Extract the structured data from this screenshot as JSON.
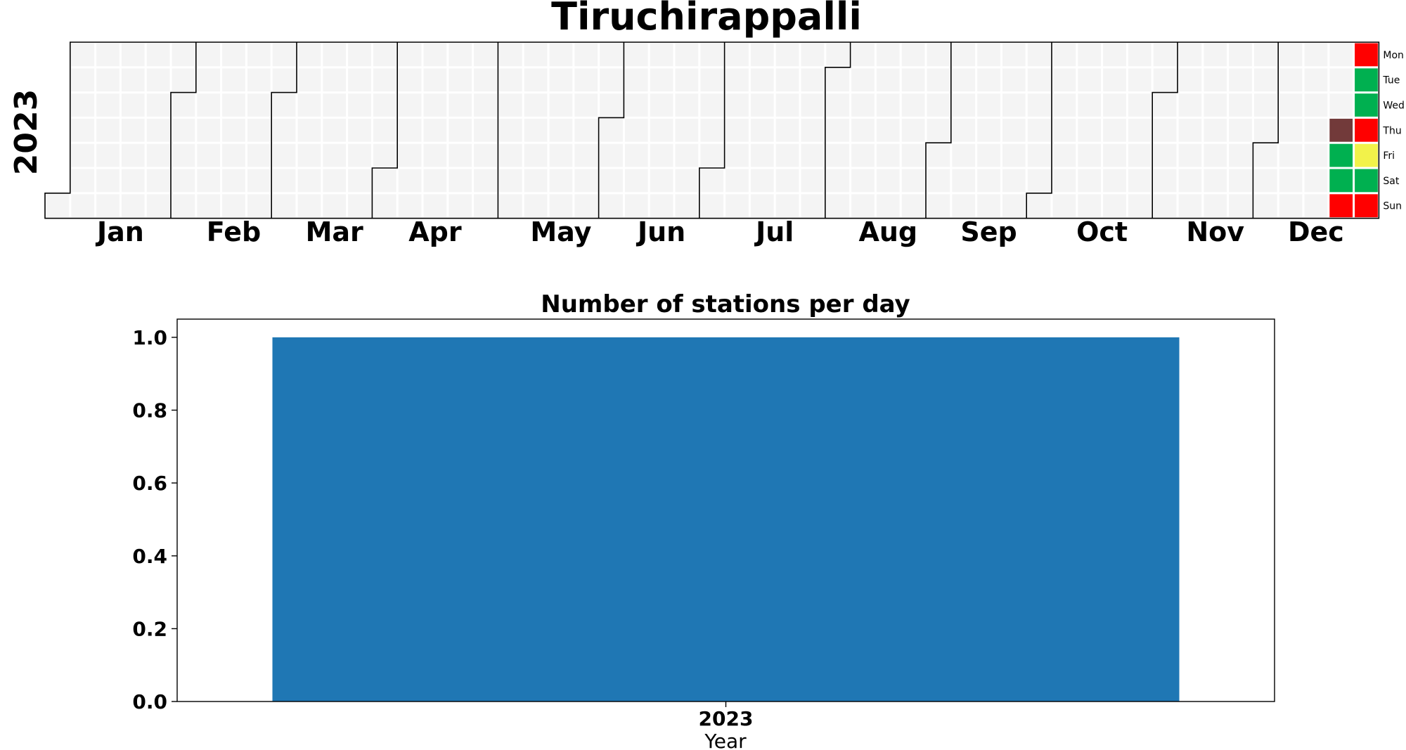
{
  "calendar": {
    "title": "Tiruchirappalli",
    "year_label": "2023",
    "months": [
      "Jan",
      "Feb",
      "Mar",
      "Apr",
      "May",
      "Jun",
      "Jul",
      "Aug",
      "Sep",
      "Oct",
      "Nov",
      "Dec"
    ],
    "weekdays": [
      "Mon",
      "Tue",
      "Wed",
      "Thu",
      "Fri",
      "Sat",
      "Sun"
    ],
    "empty_color": "#f4f4f4",
    "colored_days": [
      {
        "date": "2023-12-21",
        "color": "#723a3a"
      },
      {
        "date": "2023-12-22",
        "color": "#00b050"
      },
      {
        "date": "2023-12-23",
        "color": "#00b050"
      },
      {
        "date": "2023-12-24",
        "color": "#ff0000"
      },
      {
        "date": "2023-12-25",
        "color": "#ff0000"
      },
      {
        "date": "2023-12-26",
        "color": "#00b050"
      },
      {
        "date": "2023-12-27",
        "color": "#00b050"
      },
      {
        "date": "2023-12-28",
        "color": "#ff0000"
      },
      {
        "date": "2023-12-29",
        "color": "#f2f24a"
      },
      {
        "date": "2023-12-30",
        "color": "#00b050"
      },
      {
        "date": "2023-12-31",
        "color": "#ff0000"
      }
    ]
  },
  "chart_data": {
    "type": "bar",
    "title": "Number of stations per day",
    "xlabel": "Year",
    "ylabel": "",
    "categories": [
      "2023"
    ],
    "values": [
      1.0
    ],
    "ylim": [
      0,
      1.05
    ],
    "yticks": [
      "0.0",
      "0.2",
      "0.4",
      "0.6",
      "0.8",
      "1.0"
    ],
    "bar_color": "#1f77b4",
    "grid": false
  }
}
